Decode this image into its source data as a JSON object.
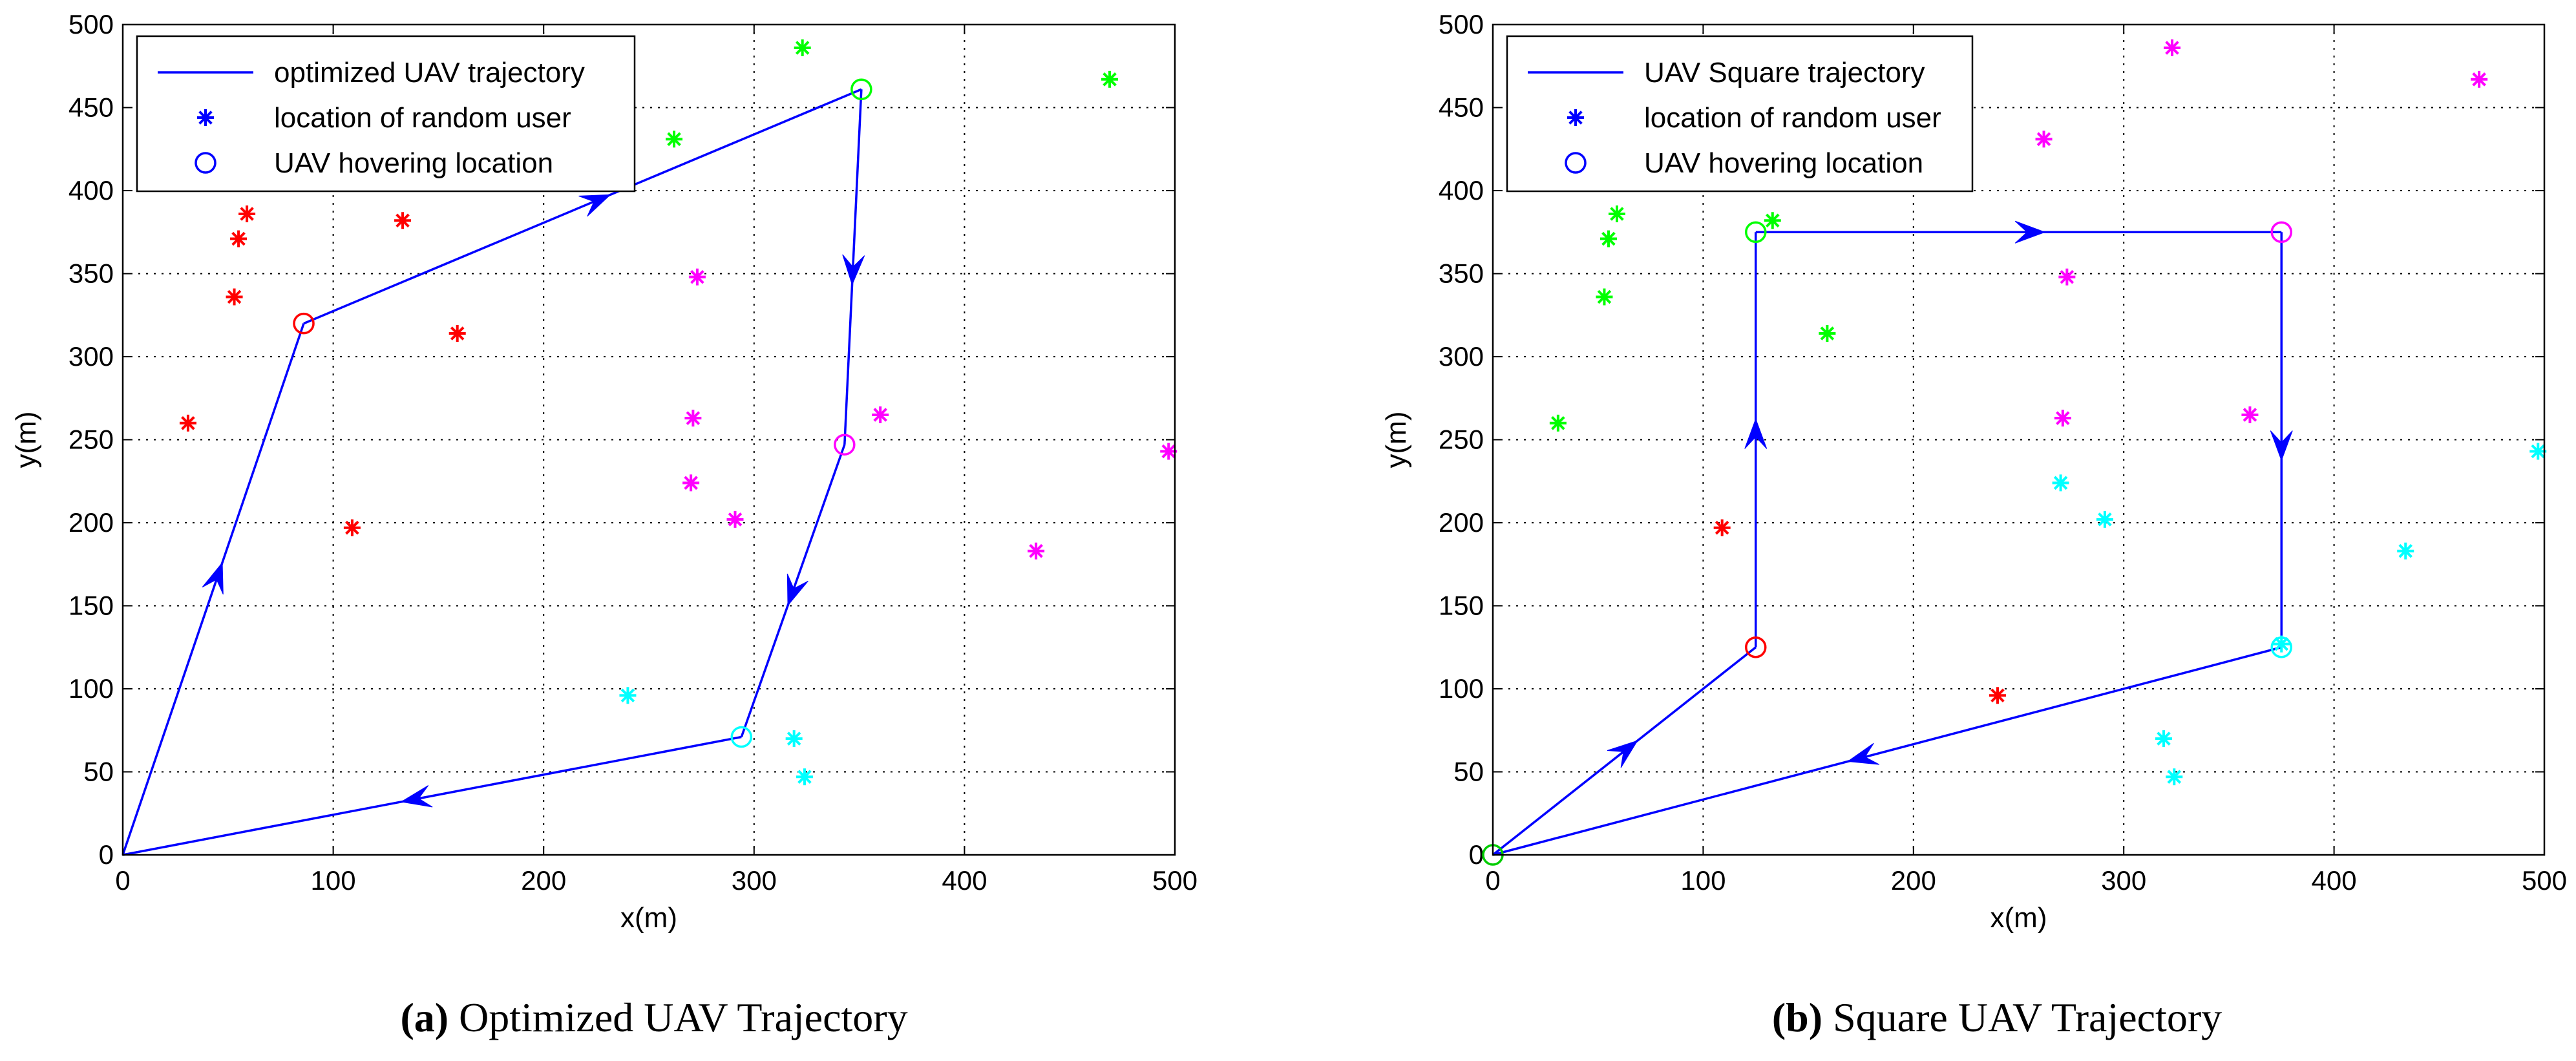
{
  "chart_data": [
    {
      "type": "scatter",
      "panel_label": "(a)",
      "caption": "Optimized UAV Trajectory",
      "xlabel": "x(m)",
      "ylabel": "y(m)",
      "xlim": [
        0,
        500
      ],
      "ylim": [
        0,
        500
      ],
      "xticks": [
        0,
        100,
        200,
        300,
        400,
        500
      ],
      "yticks": [
        0,
        50,
        100,
        150,
        200,
        250,
        300,
        350,
        400,
        450,
        500
      ],
      "grid": true,
      "legend": {
        "position": "top-left",
        "entries": [
          {
            "kind": "line",
            "label": "optimized UAV trajectory"
          },
          {
            "kind": "star",
            "label": "location of random user"
          },
          {
            "kind": "circle",
            "label": "UAV hovering location"
          }
        ]
      },
      "trajectory": {
        "color": "#0000ff",
        "points": [
          [
            0,
            0
          ],
          [
            86,
            320
          ],
          [
            351,
            461
          ],
          [
            343,
            247
          ],
          [
            294,
            71
          ],
          [
            0,
            0
          ]
        ]
      },
      "hovering": [
        {
          "x": 86,
          "y": 320,
          "color": "#ff0000"
        },
        {
          "x": 351,
          "y": 461,
          "color": "#00ff00"
        },
        {
          "x": 343,
          "y": 247,
          "color": "#ff00ff"
        },
        {
          "x": 294,
          "y": 71,
          "color": "#00ffff"
        }
      ],
      "users": [
        {
          "color": "#ff0000",
          "points": [
            [
              31,
              260
            ],
            [
              53,
              336
            ],
            [
              55,
              371
            ],
            [
              59,
              386
            ],
            [
              133,
              382
            ],
            [
              159,
              314
            ],
            [
              109,
              197
            ]
          ]
        },
        {
          "color": "#00ff00",
          "points": [
            [
              262,
              431
            ],
            [
              323,
              486
            ],
            [
              469,
              467
            ]
          ]
        },
        {
          "color": "#ff00ff",
          "points": [
            [
              273,
              348
            ],
            [
              271,
              263
            ],
            [
              270,
              224
            ],
            [
              291,
              202
            ],
            [
              360,
              265
            ],
            [
              434,
              183
            ],
            [
              497,
              243
            ]
          ]
        },
        {
          "color": "#00ffff",
          "points": [
            [
              240,
              96
            ],
            [
              319,
              70
            ],
            [
              324,
              47
            ]
          ]
        }
      ]
    },
    {
      "type": "scatter",
      "panel_label": "(b)",
      "caption": "Square UAV Trajectory",
      "xlabel": "x(m)",
      "ylabel": "y(m)",
      "xlim": [
        0,
        500
      ],
      "ylim": [
        0,
        500
      ],
      "xticks": [
        0,
        100,
        200,
        300,
        400,
        500
      ],
      "yticks": [
        0,
        50,
        100,
        150,
        200,
        250,
        300,
        350,
        400,
        450,
        500
      ],
      "grid": true,
      "legend": {
        "position": "top-left",
        "entries": [
          {
            "kind": "line",
            "label": "UAV Square trajectory"
          },
          {
            "kind": "star",
            "label": "location of random user"
          },
          {
            "kind": "circle",
            "label": "UAV hovering location"
          }
        ]
      },
      "trajectory": {
        "color": "#0000ff",
        "points": [
          [
            0,
            0
          ],
          [
            125,
            125
          ],
          [
            125,
            375
          ],
          [
            375,
            375
          ],
          [
            375,
            125
          ],
          [
            0,
            0
          ]
        ]
      },
      "hovering": [
        {
          "x": 0,
          "y": 0,
          "color": "#00cc00"
        },
        {
          "x": 125,
          "y": 125,
          "color": "#ff0000"
        },
        {
          "x": 125,
          "y": 375,
          "color": "#00ff00"
        },
        {
          "x": 375,
          "y": 375,
          "color": "#ff00ff"
        },
        {
          "x": 375,
          "y": 125,
          "color": "#00ffff"
        }
      ],
      "users": [
        {
          "color": "#00ff00",
          "points": [
            [
              31,
              260
            ],
            [
              53,
              336
            ],
            [
              55,
              371
            ],
            [
              59,
              386
            ],
            [
              133,
              382
            ],
            [
              159,
              314
            ]
          ]
        },
        {
          "color": "#ff0000",
          "points": [
            [
              109,
              197
            ],
            [
              240,
              96
            ]
          ]
        },
        {
          "color": "#ff00ff",
          "points": [
            [
              262,
              431
            ],
            [
              323,
              486
            ],
            [
              469,
              467
            ],
            [
              273,
              348
            ],
            [
              271,
              263
            ],
            [
              360,
              265
            ]
          ]
        },
        {
          "color": "#00ffff",
          "points": [
            [
              270,
              224
            ],
            [
              291,
              202
            ],
            [
              434,
              183
            ],
            [
              497,
              243
            ],
            [
              319,
              70
            ],
            [
              324,
              47
            ],
            [
              375,
              127
            ]
          ]
        }
      ]
    }
  ]
}
